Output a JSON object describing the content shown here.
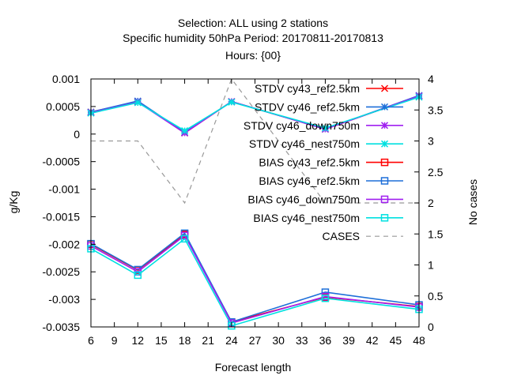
{
  "chart_data": {
    "type": "line",
    "title": [
      "Selection: ALL using     2 stations",
      "Specific humidity 50hPa   Period: 20170811-20170813",
      "Hours: {00}"
    ],
    "xlabel": "Forecast length",
    "ylabel": "g/Kg",
    "y2label": "No cases",
    "xlim": [
      6,
      48
    ],
    "ylim": [
      -0.0035,
      0.001
    ],
    "y2lim": [
      0,
      4
    ],
    "xticks": [
      6,
      9,
      12,
      15,
      18,
      21,
      24,
      27,
      30,
      33,
      36,
      39,
      42,
      45,
      48
    ],
    "yticks": [
      0.001,
      0.0005,
      0,
      -0.0005,
      -0.001,
      -0.0015,
      -0.002,
      -0.0025,
      -0.003,
      -0.0035
    ],
    "ytick_labels": [
      "0.001",
      "0.0005",
      "0",
      "-0.0005",
      "-0.001",
      "-0.0015",
      "-0.002",
      "-0.0025",
      "-0.003",
      "-0.0035"
    ],
    "y2ticks": [
      4,
      3.5,
      3,
      2.5,
      2,
      1.5,
      1,
      0.5,
      0
    ],
    "y2tick_labels": [
      "4",
      "3.5",
      "3",
      "2.5",
      "2",
      "1.5",
      "1",
      "0.5",
      "0"
    ],
    "legend_position": "top-right",
    "x": [
      6,
      12,
      18,
      24,
      36,
      48
    ],
    "series": [
      {
        "name": "STDV cy43_ref2.5km",
        "axis": "y",
        "marker": "x",
        "color": "#ff0000",
        "values": [
          0.0004,
          0.00059,
          2e-05,
          0.00059,
          9e-05,
          0.00069
        ]
      },
      {
        "name": "STDV cy46_ref2.5km",
        "axis": "y",
        "marker": "star",
        "color": "#1e6fd9",
        "values": [
          0.0004,
          0.0006,
          3e-05,
          0.00059,
          9e-05,
          0.0007
        ]
      },
      {
        "name": "STDV cy46_down750m",
        "axis": "y",
        "marker": "star",
        "color": "#a020f0",
        "values": [
          0.00039,
          0.00058,
          2e-05,
          0.00059,
          9e-05,
          0.00069
        ]
      },
      {
        "name": "STDV cy46_nest750m",
        "axis": "y",
        "marker": "star",
        "color": "#00e0e0",
        "values": [
          0.00038,
          0.00057,
          6e-05,
          0.00058,
          0.00011,
          0.00067
        ]
      },
      {
        "name": "BIAS cy43_ref2.5km",
        "axis": "y",
        "marker": "square",
        "color": "#ff0000",
        "values": [
          -0.002,
          -0.00247,
          -0.00182,
          -0.00341,
          -0.00296,
          -0.00313
        ]
      },
      {
        "name": "BIAS cy46_ref2.5km",
        "axis": "y",
        "marker": "square",
        "color": "#1e6fd9",
        "values": [
          -0.00199,
          -0.00246,
          -0.0018,
          -0.00341,
          -0.00287,
          -0.0031
        ]
      },
      {
        "name": "BIAS cy46_down750m",
        "axis": "y",
        "marker": "square",
        "color": "#a020f0",
        "values": [
          -0.00203,
          -0.0025,
          -0.00184,
          -0.00343,
          -0.00295,
          -0.00314
        ]
      },
      {
        "name": "BIAS cy46_nest750m",
        "axis": "y",
        "marker": "square",
        "color": "#00e0e0",
        "values": [
          -0.00208,
          -0.00256,
          -0.0019,
          -0.00348,
          -0.00298,
          -0.00318
        ]
      },
      {
        "name": "CASES",
        "axis": "y2",
        "marker": "none",
        "dashed": true,
        "color": "#999999",
        "values": [
          3,
          3,
          2,
          4,
          2,
          2
        ]
      }
    ]
  }
}
